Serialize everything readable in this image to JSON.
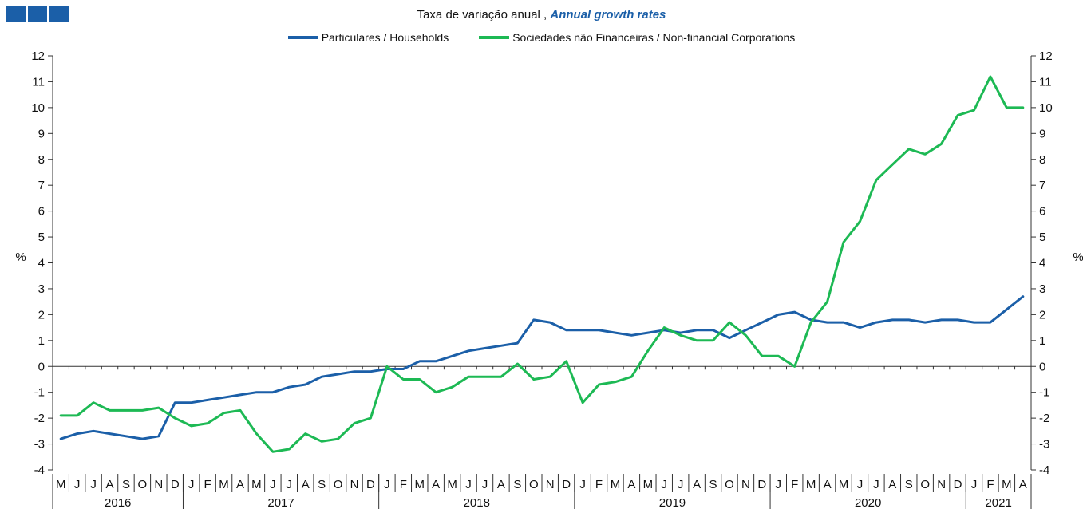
{
  "logo": {
    "squares": 3,
    "color": "#1b5fa8"
  },
  "subtitle": {
    "pt": "Taxa de variação anual , ",
    "en": "Annual growth rates"
  },
  "chart_data": {
    "type": "line",
    "title": "",
    "subtitle": "Taxa de variação anual , Annual growth rates",
    "ylabel_left": "%",
    "ylabel_right": "%",
    "ylim": [
      -4,
      12
    ],
    "yticks": [
      -4,
      -3,
      -2,
      -1,
      0,
      1,
      2,
      3,
      4,
      5,
      6,
      7,
      8,
      9,
      10,
      11,
      12
    ],
    "grid": false,
    "legend_position": "top-center",
    "months": [
      "M",
      "J",
      "J",
      "A",
      "S",
      "O",
      "N",
      "D",
      "J",
      "F",
      "M",
      "A",
      "M",
      "J",
      "J",
      "A",
      "S",
      "O",
      "N",
      "D",
      "J",
      "F",
      "M",
      "A",
      "M",
      "J",
      "J",
      "A",
      "S",
      "O",
      "N",
      "D",
      "J",
      "F",
      "M",
      "A",
      "M",
      "J",
      "J",
      "A",
      "S",
      "O",
      "N",
      "D",
      "J",
      "F",
      "M",
      "A",
      "M",
      "J",
      "J",
      "A",
      "S",
      "O",
      "N",
      "D",
      "J",
      "F",
      "M",
      "A"
    ],
    "years": [
      {
        "label": "2016",
        "start": 0,
        "count": 8
      },
      {
        "label": "2017",
        "start": 8,
        "count": 12
      },
      {
        "label": "2018",
        "start": 20,
        "count": 12
      },
      {
        "label": "2019",
        "start": 32,
        "count": 12
      },
      {
        "label": "2020",
        "start": 44,
        "count": 12
      },
      {
        "label": "2021",
        "start": 56,
        "count": 4
      }
    ],
    "series": [
      {
        "name": "Particulares / Households",
        "color": "#1b5fa8",
        "values": [
          -2.8,
          -2.6,
          -2.5,
          -2.6,
          -2.7,
          -2.8,
          -2.7,
          -1.4,
          -1.4,
          -1.3,
          -1.2,
          -1.1,
          -1.0,
          -1.0,
          -0.8,
          -0.7,
          -0.4,
          -0.3,
          -0.2,
          -0.2,
          -0.1,
          -0.1,
          0.2,
          0.2,
          0.4,
          0.6,
          0.7,
          0.8,
          0.9,
          1.8,
          1.7,
          1.4,
          1.4,
          1.4,
          1.3,
          1.2,
          1.3,
          1.4,
          1.3,
          1.4,
          1.4,
          1.1,
          1.4,
          1.7,
          2.0,
          2.1,
          1.8,
          1.7,
          1.7,
          1.5,
          1.7,
          1.8,
          1.8,
          1.7,
          1.8,
          1.8,
          1.7,
          1.7,
          2.2,
          2.7
        ]
      },
      {
        "name": "Sociedades não Financeiras / Non-financial Corporations",
        "color": "#1db954",
        "values": [
          -1.9,
          -1.9,
          -1.4,
          -1.7,
          -1.7,
          -1.7,
          -1.6,
          -2.0,
          -2.3,
          -2.2,
          -1.8,
          -1.7,
          -2.6,
          -3.3,
          -3.2,
          -2.6,
          -2.9,
          -2.8,
          -2.2,
          -2.0,
          0.0,
          -0.5,
          -0.5,
          -1.0,
          -0.8,
          -0.4,
          -0.4,
          -0.4,
          0.1,
          -0.5,
          -0.4,
          0.2,
          -1.4,
          -0.7,
          -0.6,
          -0.4,
          0.6,
          1.5,
          1.2,
          1.0,
          1.0,
          1.7,
          1.2,
          0.4,
          0.4,
          0.0,
          1.7,
          2.5,
          4.8,
          5.6,
          7.2,
          7.8,
          8.4,
          8.2,
          8.6,
          9.7,
          9.9,
          11.2,
          10.0,
          10.0
        ]
      }
    ]
  }
}
